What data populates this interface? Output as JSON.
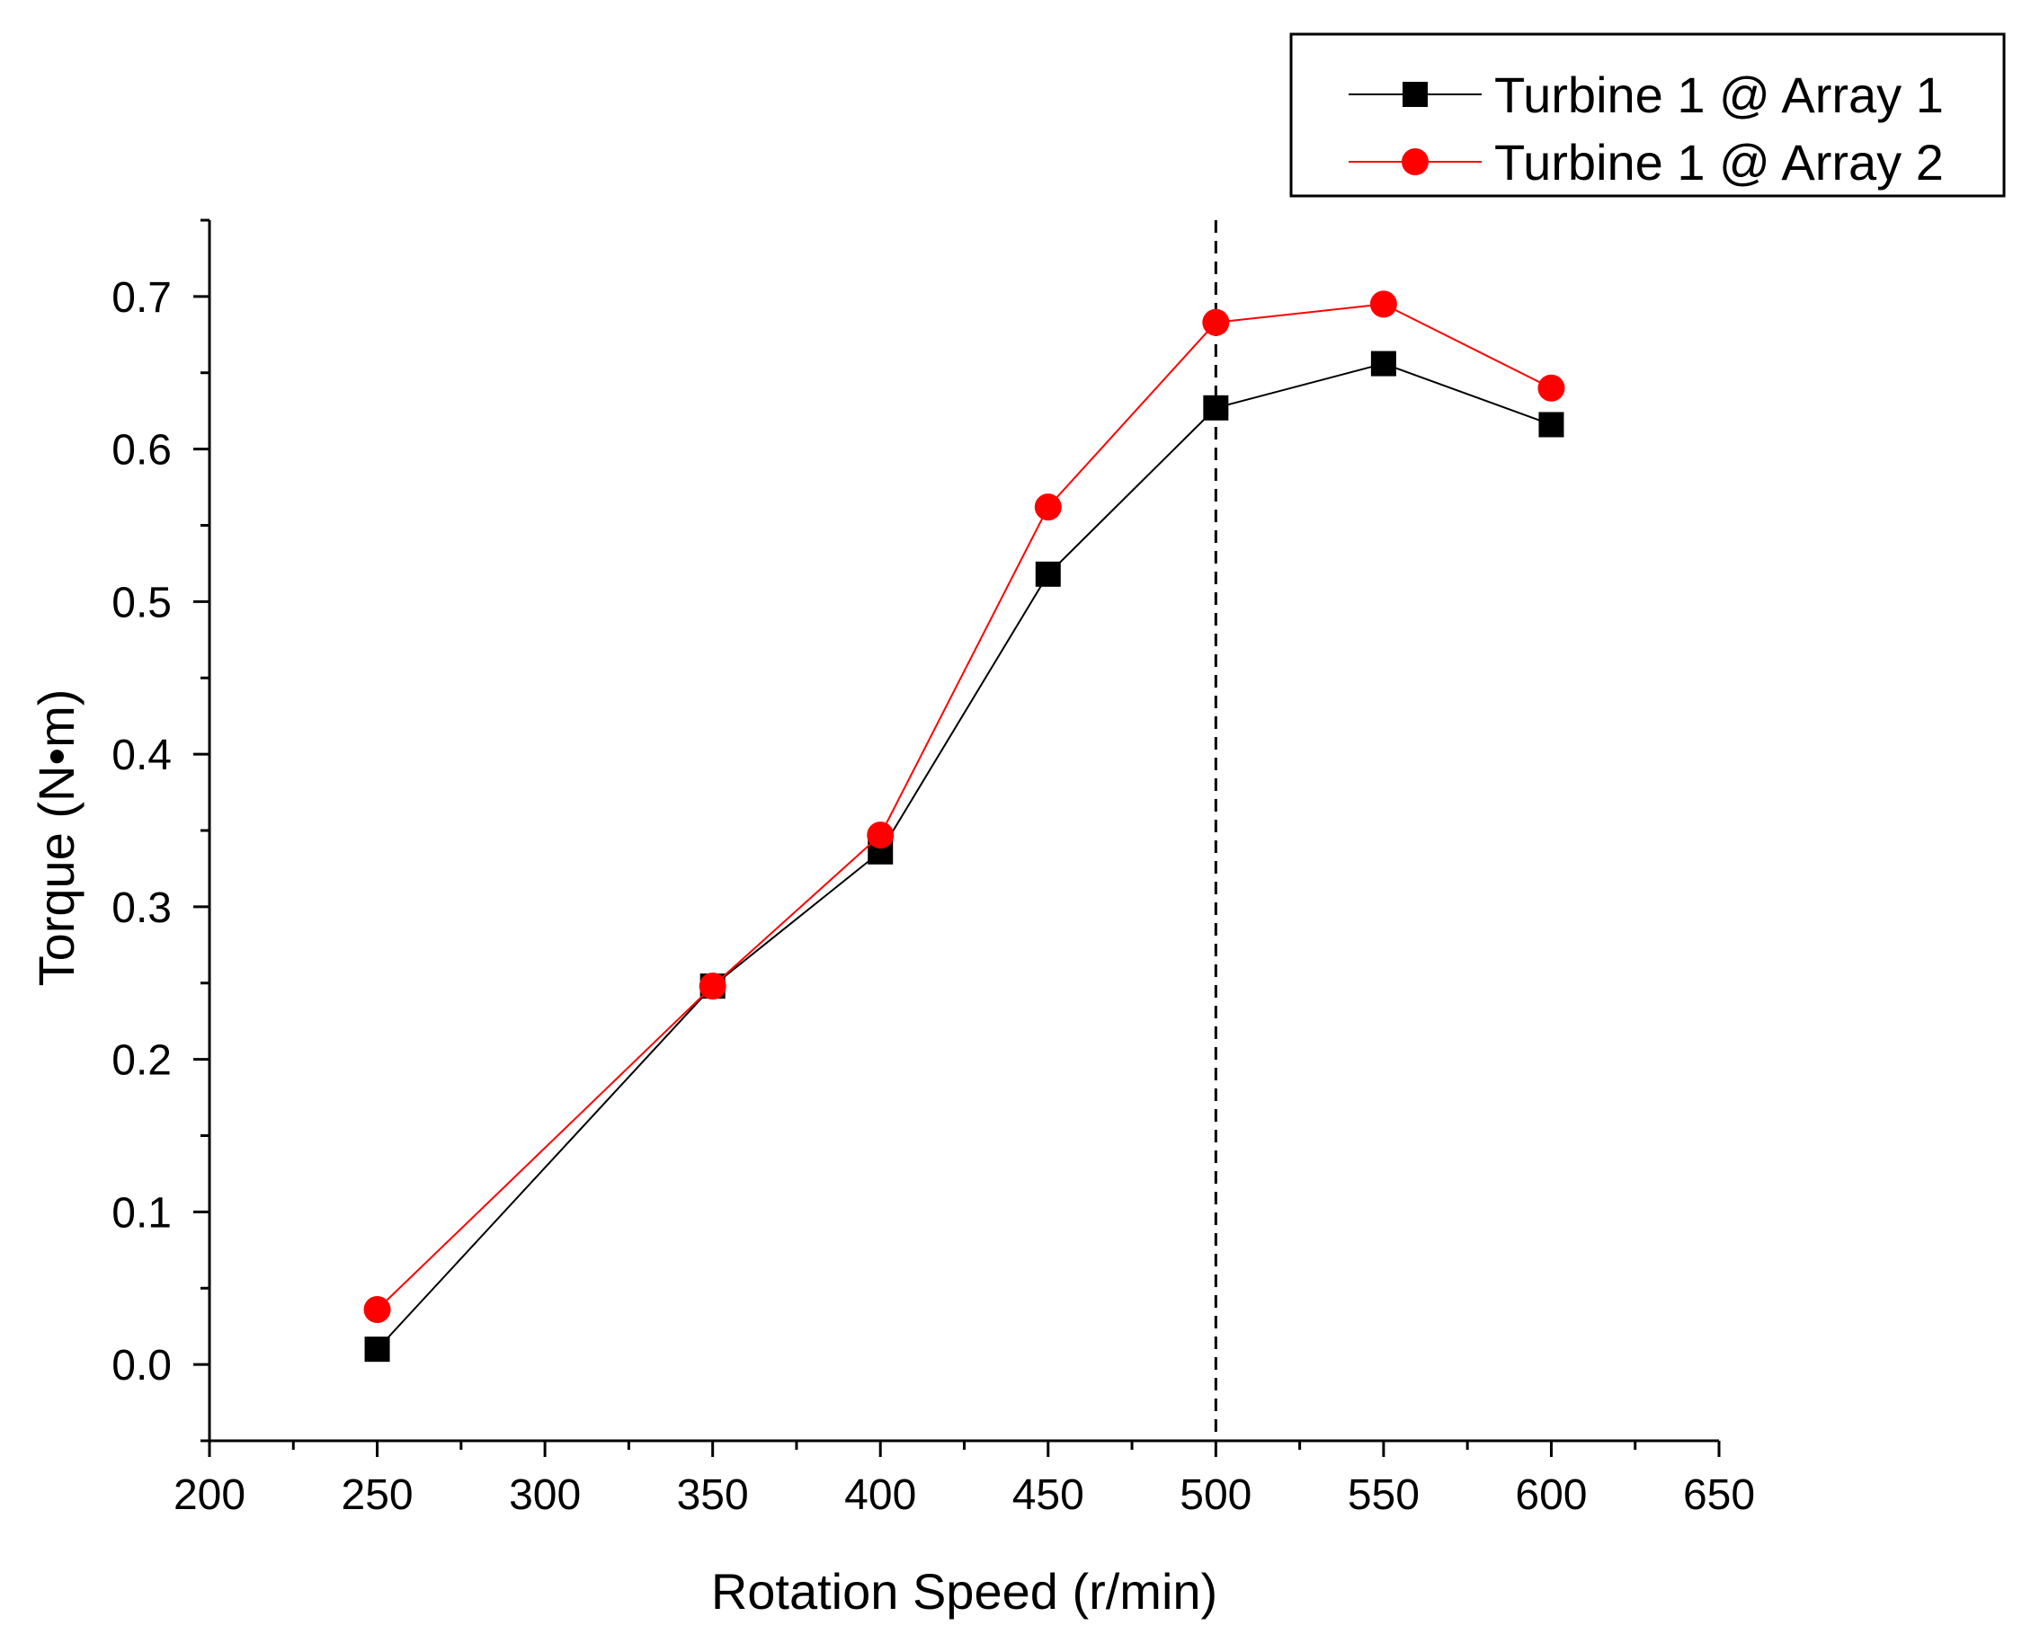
{
  "chart_data": {
    "type": "line",
    "title": "",
    "xlabel": "Rotation Speed (r/min)",
    "ylabel": "Torque (N•m)",
    "xlim": [
      200,
      650
    ],
    "ylim": [
      -0.05,
      0.75
    ],
    "x_ticks": [
      200,
      250,
      300,
      350,
      400,
      450,
      500,
      550,
      600,
      650
    ],
    "x_tick_labels": [
      "200",
      "250",
      "300",
      "350",
      "400",
      "450",
      "500",
      "550",
      "600",
      "650"
    ],
    "y_ticks": [
      0.0,
      0.1,
      0.2,
      0.3,
      0.4,
      0.5,
      0.6,
      0.7
    ],
    "y_tick_labels": [
      "0.0",
      "0.1",
      "0.2",
      "0.3",
      "0.4",
      "0.5",
      "0.6",
      "0.7"
    ],
    "grid": false,
    "legend_position": "top-right",
    "reference_line": {
      "x": 500,
      "style": "dashed",
      "color": "#000000"
    },
    "series": [
      {
        "name": "Turbine 1 @ Array 1",
        "color": "#000000",
        "marker": "square",
        "x": [
          250,
          350,
          400,
          450,
          500,
          550,
          600
        ],
        "values": [
          0.01,
          0.248,
          0.336,
          0.518,
          0.627,
          0.656,
          0.616
        ]
      },
      {
        "name": "Turbine 1 @ Array 2",
        "color": "#ff0000",
        "marker": "circle",
        "x": [
          250,
          350,
          400,
          450,
          500,
          550,
          600
        ],
        "values": [
          0.036,
          0.248,
          0.347,
          0.562,
          0.683,
          0.695,
          0.64
        ]
      }
    ]
  }
}
